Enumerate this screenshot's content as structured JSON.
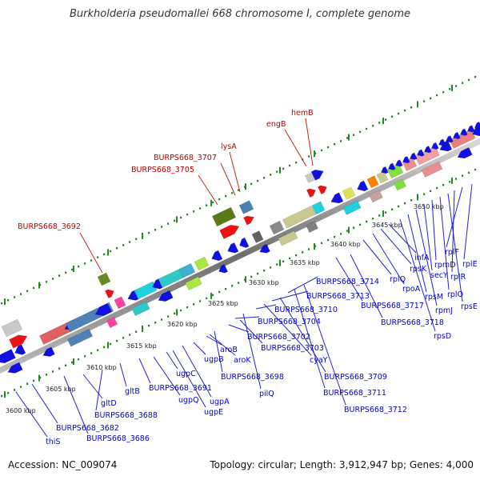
{
  "title": "Burkholderia pseudomallei 668 chromosome I, complete genome",
  "footer": {
    "accession": "Accession: NC_009074",
    "stats": "Topology: circular; Length: 3,912,947 bp; Genes: 4,000"
  },
  "colors": {
    "forward_label": "#c00000",
    "reverse_label": "#0000cc",
    "tick": "#1f8a1f",
    "backbone": "#777777"
  },
  "ruler_labels": [
    "3600 kbp",
    "3605 kbp",
    "3610 kbp",
    "3615 kbp",
    "3620 kbp",
    "3625 kbp",
    "3630 kbp",
    "3635 kbp",
    "3640 kbp",
    "3645 kbp",
    "3650 kbp"
  ],
  "forward_genes": [
    "BURPS668_3692",
    "BURPS668_3705",
    "BURPS668_3707",
    "lysA",
    "engB",
    "hemB"
  ],
  "reverse_genes": [
    "thiS",
    "BURPS668_3682",
    "BURPS668_3686",
    "gltD",
    "BURPS668_3688",
    "gltB",
    "BURPS668_3691",
    "ugpQ",
    "ugpE",
    "ugpA",
    "ugpC",
    "ugpB",
    "aroB",
    "aroK",
    "BURPS668_3698",
    "BURPS668_3702",
    "BURPS668_3704",
    "BURPS668_3703",
    "pilQ",
    "BURPS668_3710",
    "cyaY",
    "BURPS668_3713",
    "BURPS668_3709",
    "BURPS668_3714",
    "BURPS668_3711",
    "BURPS668_3712",
    "BURPS668_3717",
    "BURPS668_3718",
    "rplQ",
    "rpoA",
    "rpsK",
    "infA",
    "rpsD",
    "rpsM",
    "rpmJ",
    "secY",
    "rpmD",
    "rplO",
    "rpsE",
    "rplR",
    "rplF",
    "rplE"
  ]
}
